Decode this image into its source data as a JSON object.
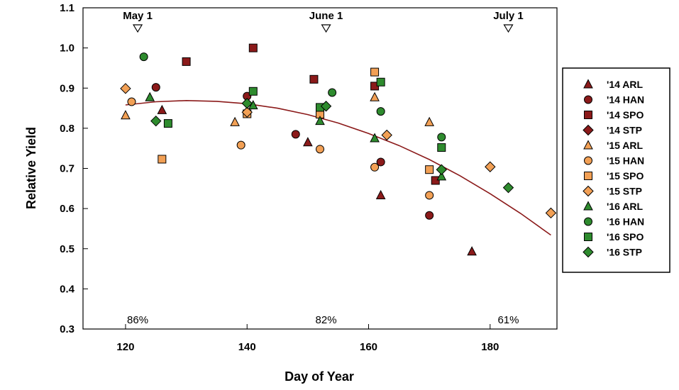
{
  "chart_data": {
    "type": "scatter",
    "title": "",
    "xlabel": "Day of Year",
    "ylabel": "Relative Yield",
    "xlim": [
      113,
      191
    ],
    "ylim": [
      0.3,
      1.1
    ],
    "xticks": [
      120,
      140,
      160,
      180
    ],
    "yticks": [
      0.3,
      0.4,
      0.5,
      0.6,
      0.7,
      0.8,
      0.9,
      1.0,
      1.1
    ],
    "date_markers": [
      {
        "label": "May 1",
        "x": 122
      },
      {
        "label": "June 1",
        "x": 153
      },
      {
        "label": "July 1",
        "x": 183
      }
    ],
    "percent_labels": [
      {
        "label": "86%",
        "x": 122
      },
      {
        "label": "82%",
        "x": 153
      },
      {
        "label": "61%",
        "x": 183
      }
    ],
    "fit_curve": {
      "name": "quadratic fit",
      "color": "#8B1A1A",
      "x": [
        120,
        125,
        130,
        135,
        140,
        145,
        150,
        155,
        160,
        165,
        170,
        175,
        180,
        185,
        190
      ],
      "y": [
        0.858,
        0.866,
        0.869,
        0.867,
        0.861,
        0.85,
        0.834,
        0.813,
        0.787,
        0.757,
        0.722,
        0.682,
        0.637,
        0.588,
        0.534
      ]
    },
    "series": [
      {
        "name": "'14 ARL",
        "marker": "triangle",
        "color": "#8B1A1A",
        "x": [
          126,
          150,
          162,
          177
        ],
        "y": [
          0.845,
          0.765,
          0.633,
          0.493
        ]
      },
      {
        "name": "'14 HAN",
        "marker": "circle",
        "color": "#8B1A1A",
        "x": [
          125,
          140,
          148,
          162,
          170
        ],
        "y": [
          0.902,
          0.88,
          0.785,
          0.716,
          0.583
        ]
      },
      {
        "name": "'14 SPO",
        "marker": "square",
        "color": "#8B1A1A",
        "x": [
          130,
          141,
          151,
          161,
          171
        ],
        "y": [
          0.966,
          1.0,
          0.922,
          0.905,
          0.67
        ]
      },
      {
        "name": "'14 STP",
        "marker": "diamond",
        "color": "#8B1A1A",
        "x": [],
        "y": []
      },
      {
        "name": "'15 ARL",
        "marker": "triangle",
        "color": "#F2A055",
        "x": [
          120,
          138,
          161,
          170
        ],
        "y": [
          0.832,
          0.815,
          0.877,
          0.815
        ]
      },
      {
        "name": "'15 HAN",
        "marker": "circle",
        "color": "#F2A055",
        "x": [
          121,
          139,
          152,
          161,
          170
        ],
        "y": [
          0.866,
          0.758,
          0.748,
          0.703,
          0.633
        ]
      },
      {
        "name": "'15 SPO",
        "marker": "square",
        "color": "#F2A055",
        "x": [
          126,
          140,
          152,
          161,
          170
        ],
        "y": [
          0.723,
          0.836,
          0.835,
          0.94,
          0.697
        ]
      },
      {
        "name": "'15 STP",
        "marker": "diamond",
        "color": "#F2A055",
        "x": [
          120,
          140,
          163,
          180,
          190
        ],
        "y": [
          0.899,
          0.84,
          0.783,
          0.704,
          0.589
        ]
      },
      {
        "name": "'16 ARL",
        "marker": "triangle",
        "color": "#2E8B2E",
        "x": [
          124,
          141,
          152,
          161,
          172
        ],
        "y": [
          0.877,
          0.857,
          0.818,
          0.775,
          0.68
        ]
      },
      {
        "name": "'16 HAN",
        "marker": "circle",
        "color": "#2E8B2E",
        "x": [
          123,
          154,
          162,
          172
        ],
        "y": [
          0.978,
          0.889,
          0.842,
          0.778
        ]
      },
      {
        "name": "'16 SPO",
        "marker": "square",
        "color": "#2E8B2E",
        "x": [
          127,
          141,
          152,
          162,
          172
        ],
        "y": [
          0.812,
          0.892,
          0.852,
          0.915,
          0.752
        ]
      },
      {
        "name": "'16 STP",
        "marker": "diamond",
        "color": "#2E8B2E",
        "x": [
          125,
          140,
          153,
          172,
          183
        ],
        "y": [
          0.818,
          0.862,
          0.855,
          0.697,
          0.652
        ]
      }
    ],
    "legend_position": "right"
  }
}
